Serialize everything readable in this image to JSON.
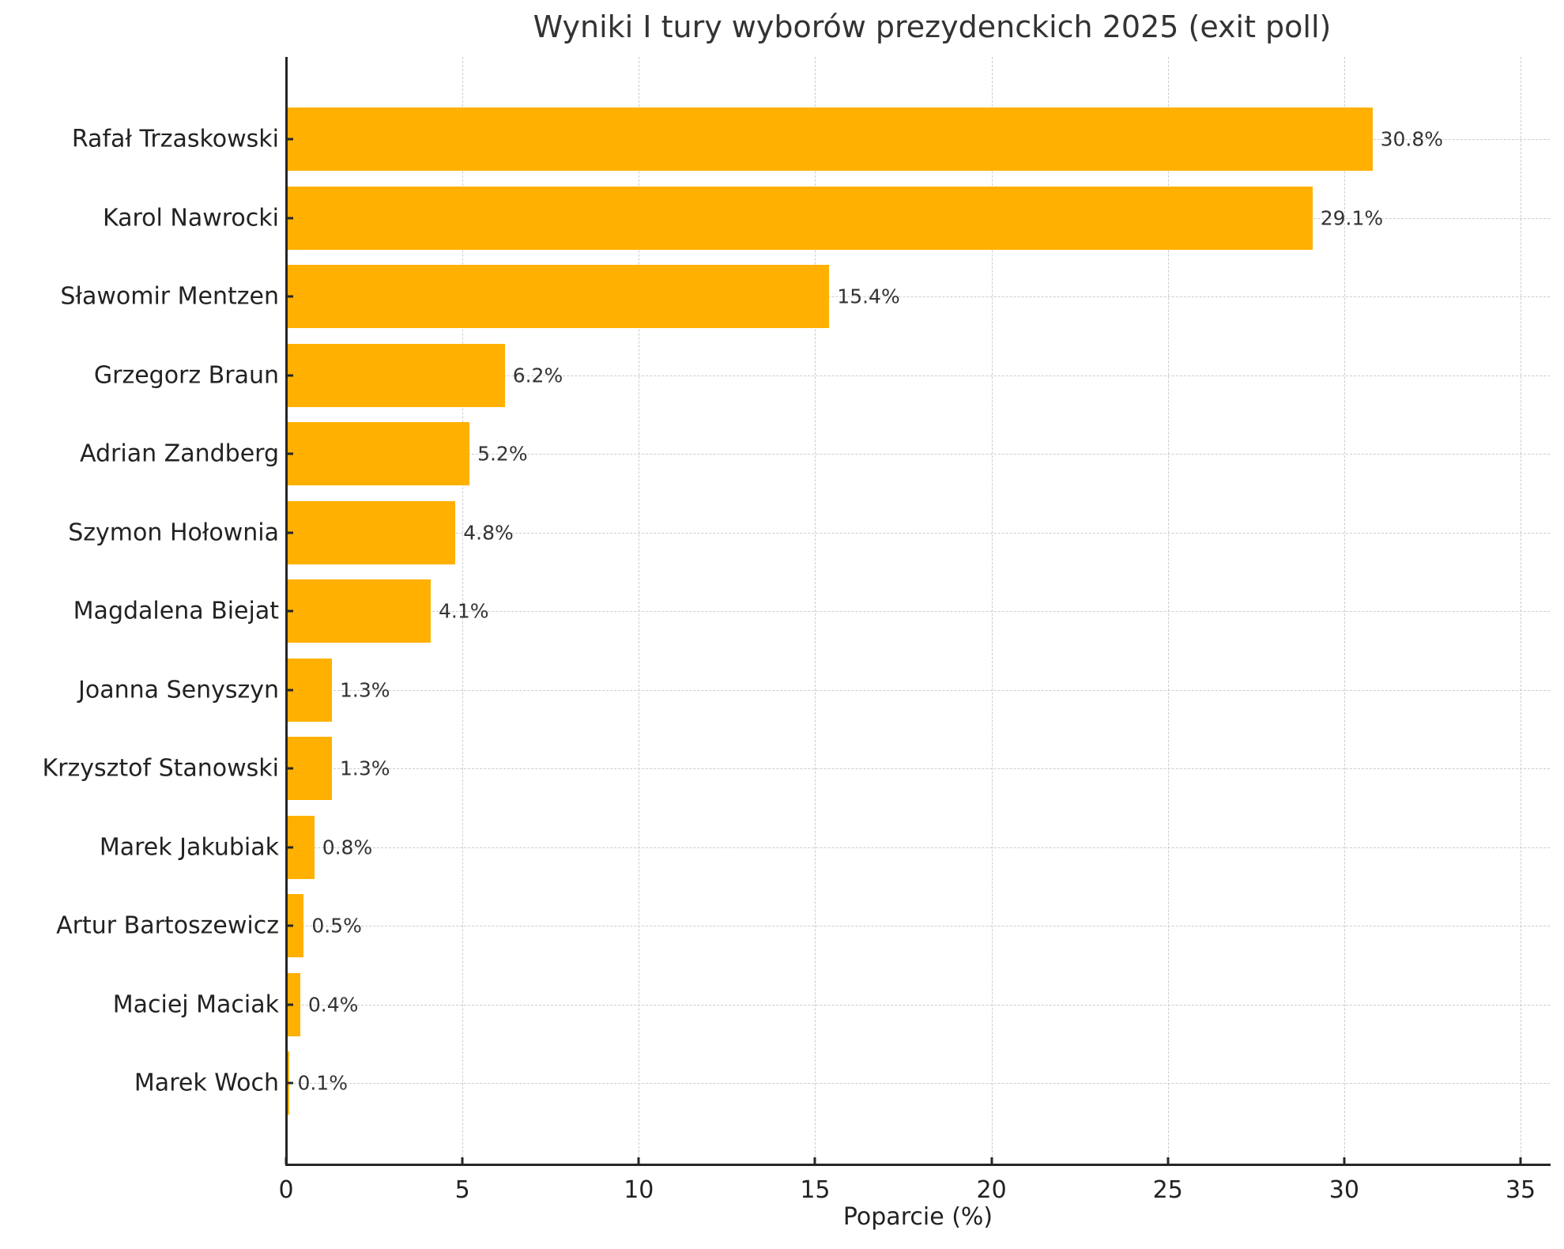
{
  "chart_data": {
    "type": "bar",
    "orientation": "horizontal",
    "title": "Wyniki I tury wyborów prezydenckich 2025 (exit poll)",
    "xlabel": "Poparcie (%)",
    "ylabel": "",
    "xlim": [
      0,
      35.9
    ],
    "xticks": [
      "0",
      "5",
      "10",
      "15",
      "20",
      "25",
      "30",
      "35"
    ],
    "grid": true,
    "bar_color": "#ffb000",
    "categories": [
      "Rafał Trzaskowski",
      "Karol Nawrocki",
      "Sławomir Mentzen",
      "Grzegorz Braun",
      "Adrian Zandberg",
      "Szymon Hołownia",
      "Magdalena Biejat",
      "Joanna Senyszyn",
      "Krzysztof Stanowski",
      "Marek Jakubiak",
      "Artur Bartoszewicz",
      "Maciej Maciak",
      "Marek Woch"
    ],
    "values": [
      30.8,
      29.1,
      15.4,
      6.2,
      5.2,
      4.8,
      4.1,
      1.3,
      1.3,
      0.8,
      0.5,
      0.4,
      0.1
    ],
    "value_labels": [
      "30.8%",
      "29.1%",
      "15.4%",
      "6.2%",
      "5.2%",
      "4.8%",
      "4.1%",
      "1.3%",
      "1.3%",
      "0.8%",
      "0.5%",
      "0.4%",
      "0.1%"
    ]
  }
}
